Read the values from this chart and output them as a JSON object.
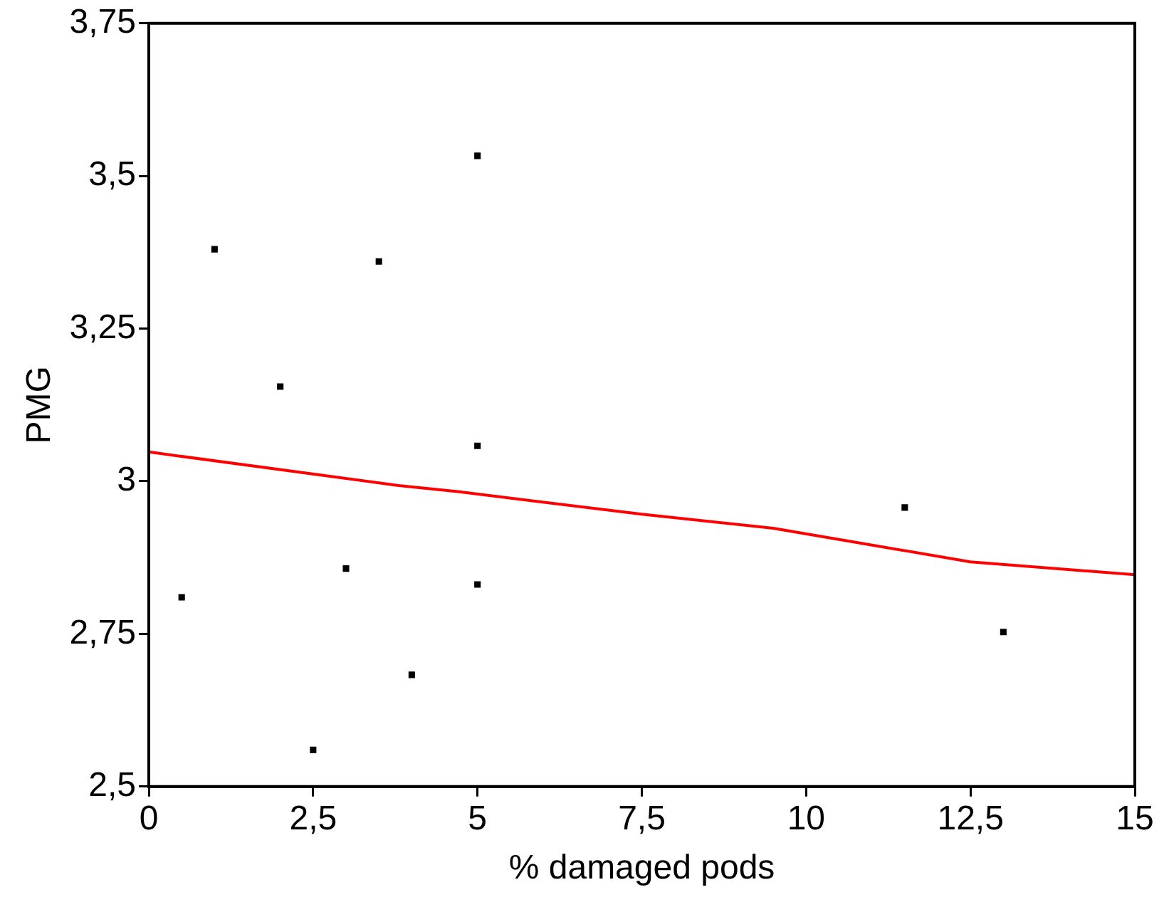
{
  "chart_data": {
    "type": "scatter",
    "xlabel": "% damaged pods",
    "ylabel": "PMG",
    "xlim": [
      0,
      15
    ],
    "ylim": [
      2.5,
      3.75
    ],
    "xticks": [
      0,
      {
        "value": 2.5,
        "label": "2,5"
      },
      5,
      {
        "value": 7.5,
        "label": "7,5"
      },
      10,
      {
        "value": 12.5,
        "label": "12,5"
      },
      15
    ],
    "yticks": [
      {
        "value": 2.5,
        "label": "2,5"
      },
      {
        "value": 2.75,
        "label": "2,75"
      },
      3,
      {
        "value": 3.25,
        "label": "3,25"
      },
      {
        "value": 3.5,
        "label": "3,5"
      },
      {
        "value": 3.75,
        "label": "3,75"
      }
    ],
    "grid": false,
    "legend": false,
    "series": [
      {
        "color": "#000000",
        "marker": "square",
        "x": [
          0.5,
          1,
          2,
          2.5,
          3,
          3.5,
          4,
          5,
          5,
          5,
          11.5,
          13
        ],
        "values": [
          2.81,
          3.38,
          3.155,
          2.56,
          2.857,
          3.36,
          2.683,
          3.533,
          3.058,
          2.831,
          2.957,
          2.753
        ]
      },
      {
        "type": "line",
        "color": "#ff0000",
        "marker": "none",
        "line_style": "solid",
        "x": [
          0,
          3.8,
          4.7,
          7.5,
          9.5,
          12.5,
          15
        ],
        "values": [
          3.048,
          2.993,
          2.983,
          2.946,
          2.923,
          2.868,
          2.847
        ]
      }
    ]
  }
}
